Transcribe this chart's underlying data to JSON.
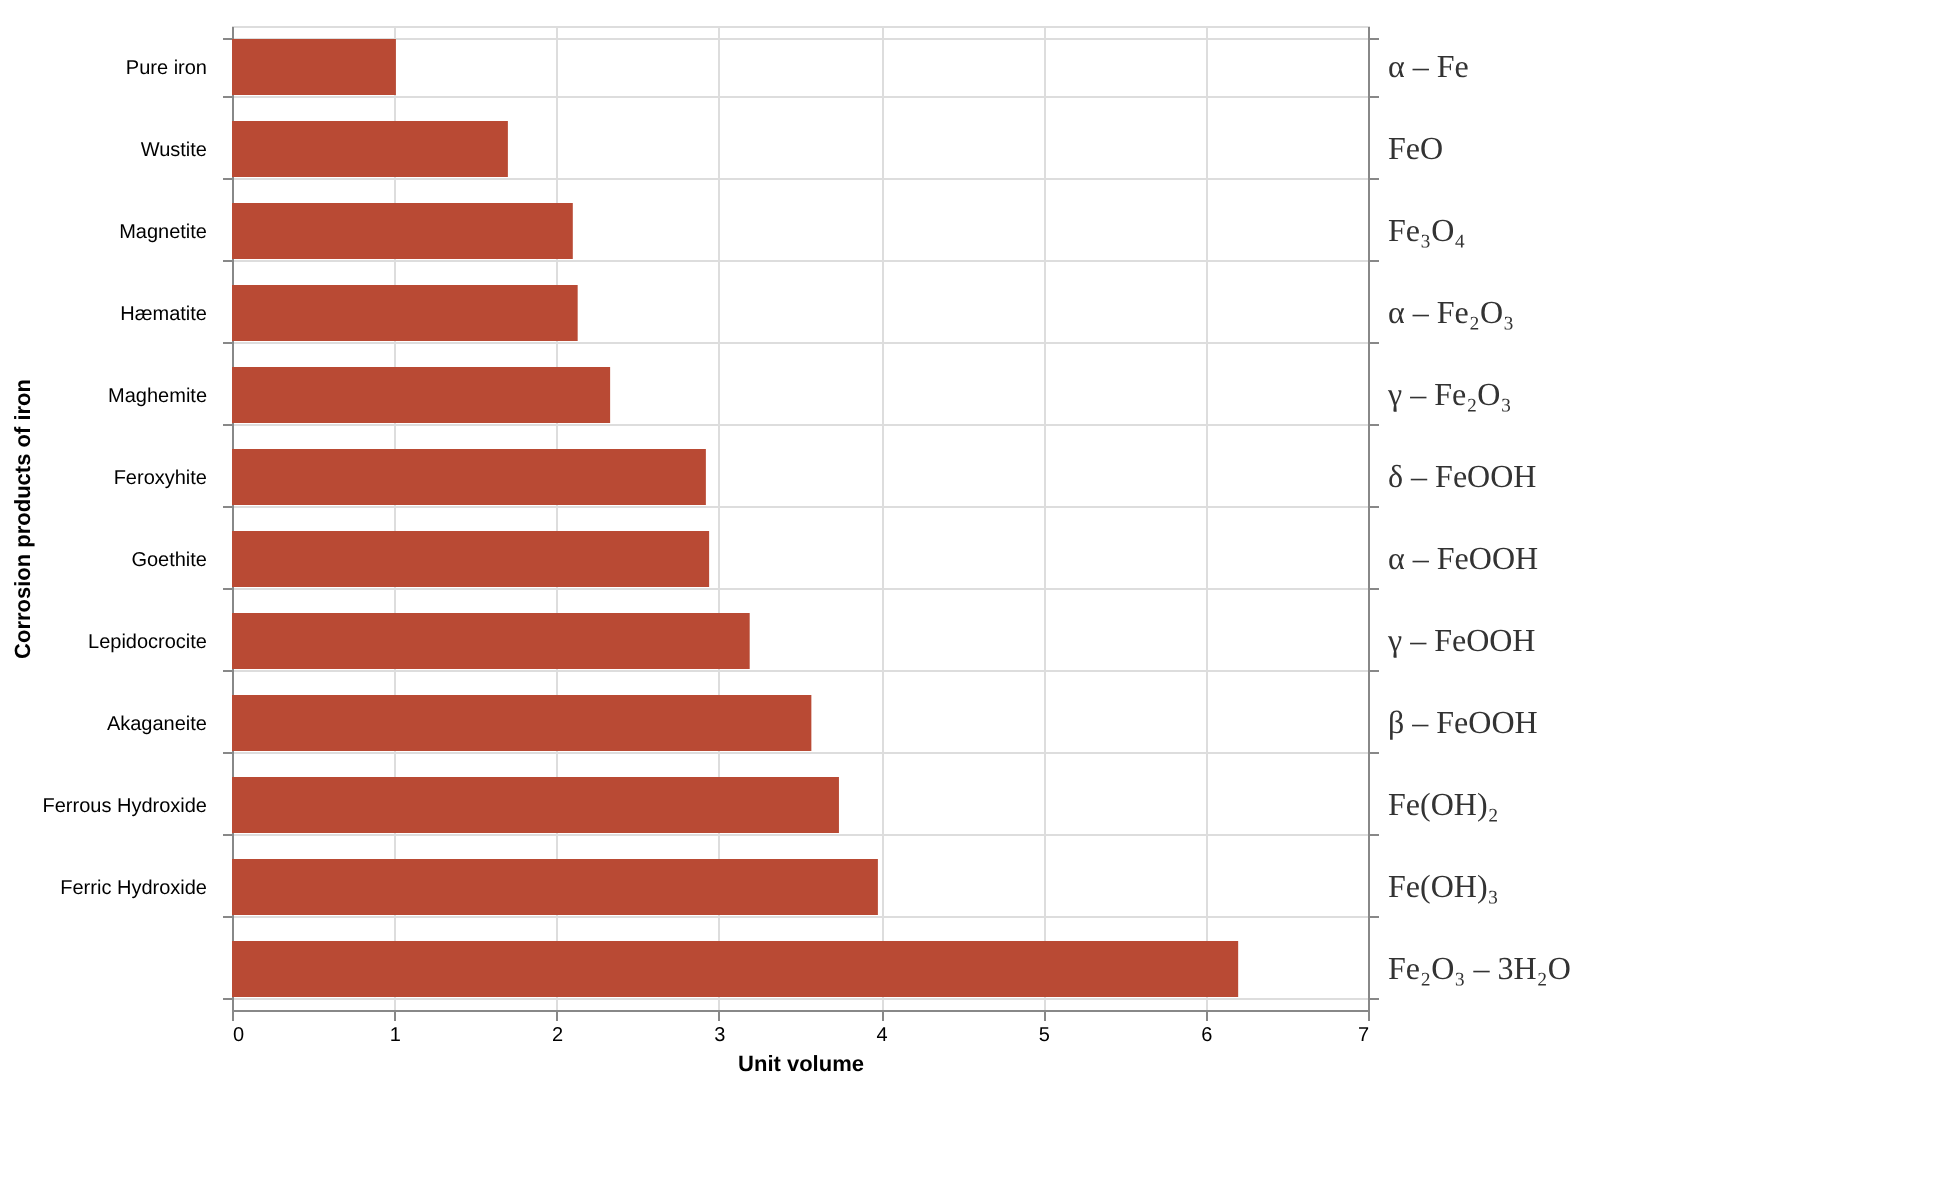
{
  "chart_data": {
    "type": "bar",
    "orientation": "horizontal",
    "xlabel": "Unit volume",
    "ylabel": "Corrosion products of iron",
    "categories": [
      "Pure iron",
      "Wustite",
      "Magnetite",
      "Hæmatite",
      "Maghemite",
      "Feroxyhite",
      "Goethite",
      "Lepidocrocite",
      "Akaganeite",
      "Ferrous Hydroxide",
      "Ferric Hydroxide",
      null
    ],
    "y2_categories": [
      "α – Fe",
      "FeO",
      "Fe₃O₄",
      "α – Fe₂O₃",
      "γ – Fe₂O₃",
      "δ – FeOOH",
      "α – FeOOH",
      "γ – FeOOH",
      "β – FeOOH",
      "Fe(OH)₂",
      "Fe(OH)₃",
      "Fe₂O₃ – 3H₂O"
    ],
    "values": [
      1.01,
      1.7,
      2.1,
      2.13,
      2.33,
      2.92,
      2.94,
      3.19,
      3.57,
      3.74,
      3.98,
      6.2
    ],
    "color": "#b94a34",
    "xlim": [
      0,
      7
    ],
    "xticks": [
      0,
      1,
      2,
      3,
      4,
      5,
      6,
      7
    ],
    "grid": true
  }
}
